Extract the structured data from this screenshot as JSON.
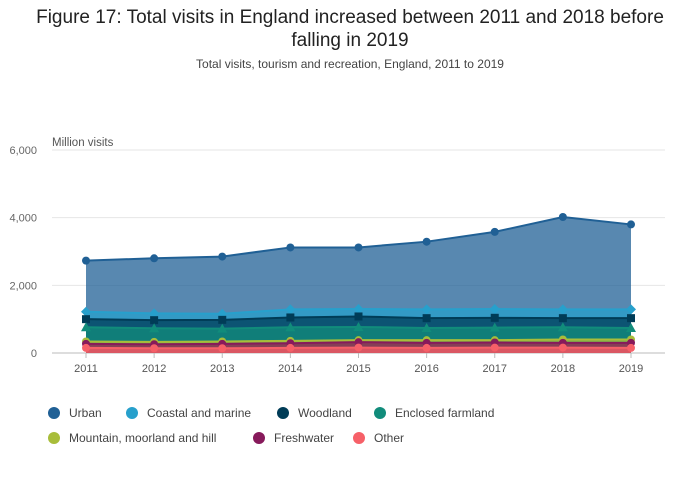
{
  "title": "Figure 17: Total visits in England increased between 2011 and 2018 before falling in 2019",
  "subtitle": "Total visits, tourism and recreation, England, 2011 to 2019",
  "chart_data": {
    "type": "area",
    "stacked": false,
    "title": "Figure 17: Total visits in England increased between 2011 and 2018 before falling in 2019",
    "subtitle": "Total visits, tourism and recreation, England, 2011 to 2019",
    "ylabel": "Million visits",
    "xlabel": "",
    "ylim": [
      0,
      6000
    ],
    "yticks": [
      0,
      2000,
      4000,
      6000
    ],
    "ytick_labels": [
      "0",
      "2,000",
      "4,000",
      "6,000"
    ],
    "categories": [
      "2011",
      "2012",
      "2013",
      "2014",
      "2015",
      "2016",
      "2017",
      "2018",
      "2019"
    ],
    "grid": "horizontal",
    "legend_position": "bottom",
    "series": [
      {
        "name": "Urban",
        "color": "#206095",
        "marker": "circle",
        "values": [
          2730,
          2800,
          2850,
          3120,
          3120,
          3290,
          3580,
          4020,
          3800
        ]
      },
      {
        "name": "Coastal and marine",
        "color": "#27a0cc",
        "marker": "diamond",
        "values": [
          1220,
          1170,
          1160,
          1290,
          1300,
          1290,
          1300,
          1290,
          1290
        ]
      },
      {
        "name": "Woodland",
        "color": "#003c57",
        "marker": "square",
        "values": [
          1000,
          970,
          980,
          1050,
          1080,
          1030,
          1040,
          1030,
          1030
        ]
      },
      {
        "name": "Enclosed farmland",
        "color": "#118c7b",
        "marker": "triangle",
        "values": [
          760,
          730,
          720,
          760,
          770,
          740,
          750,
          760,
          740
        ]
      },
      {
        "name": "Mountain, moorland and hill",
        "color": "#a8bd3a",
        "marker": "circle",
        "values": [
          340,
          330,
          340,
          360,
          380,
          380,
          380,
          400,
          400
        ]
      },
      {
        "name": "Freshwater",
        "color": "#871a5b",
        "marker": "circle",
        "values": [
          270,
          260,
          270,
          290,
          320,
          300,
          310,
          300,
          300
        ]
      },
      {
        "name": "Other",
        "color": "#f66068",
        "marker": "circle",
        "values": [
          150,
          140,
          140,
          150,
          160,
          150,
          160,
          160,
          150
        ]
      }
    ]
  }
}
